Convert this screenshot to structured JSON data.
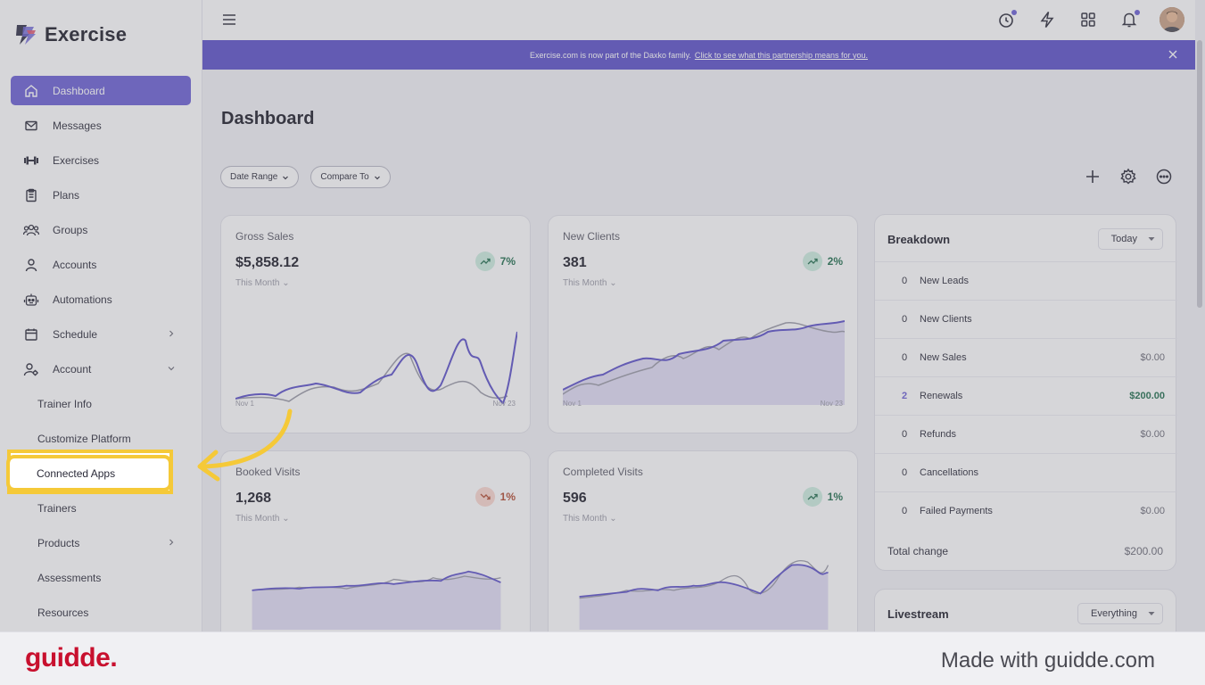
{
  "app": {
    "name": "Exercise"
  },
  "sidebar": {
    "items": [
      {
        "label": "Dashboard"
      },
      {
        "label": "Messages"
      },
      {
        "label": "Exercises"
      },
      {
        "label": "Plans"
      },
      {
        "label": "Groups"
      },
      {
        "label": "Accounts"
      },
      {
        "label": "Automations"
      },
      {
        "label": "Schedule"
      },
      {
        "label": "Account"
      }
    ],
    "subitems": [
      {
        "label": "Trainer Info"
      },
      {
        "label": "Customize Platform"
      },
      {
        "label": "Connected Apps"
      },
      {
        "label": "Trainers"
      },
      {
        "label": "Products"
      },
      {
        "label": "Assessments"
      },
      {
        "label": "Resources"
      }
    ]
  },
  "banner": {
    "text": "Exercise.com is now part of the Daxko family.",
    "link": "Click to see what this partnership means for you."
  },
  "main": {
    "title": "Dashboard",
    "filters": [
      "Date Range",
      "Compare To"
    ]
  },
  "cards": [
    {
      "title": "Gross Sales",
      "value": "$5,858.12",
      "period": "This Month",
      "trend": "7%",
      "x_start": "Nov 1",
      "x_end": "Nov 23"
    },
    {
      "title": "New Clients",
      "value": "381",
      "period": "This Month",
      "trend": "2%",
      "x_start": "Nov 1",
      "x_end": "Nov 23"
    },
    {
      "title": "Booked Visits",
      "value": "1,268",
      "period": "This Month",
      "trend": "1%"
    },
    {
      "title": "Completed Visits",
      "value": "596",
      "period": "This Month",
      "trend": "1%"
    }
  ],
  "breakdown": {
    "title": "Breakdown",
    "select": "Today",
    "rows": [
      {
        "count": "0",
        "label": "New Leads",
        "amount": ""
      },
      {
        "count": "0",
        "label": "New Clients",
        "amount": ""
      },
      {
        "count": "0",
        "label": "New Sales",
        "amount": "$0.00"
      },
      {
        "count": "2",
        "label": "Renewals",
        "amount": "$200.00"
      },
      {
        "count": "0",
        "label": "Refunds",
        "amount": "$0.00"
      },
      {
        "count": "0",
        "label": "Cancellations",
        "amount": ""
      },
      {
        "count": "0",
        "label": "Failed Payments",
        "amount": "$0.00"
      }
    ],
    "total_label": "Total change",
    "total_value": "$200.00"
  },
  "livestream": {
    "title": "Livestream",
    "select": "Everything"
  },
  "footer": {
    "logo": "guidde.",
    "made_with": "Made with guidde.com"
  },
  "colors": {
    "accent": "#6a5fd4",
    "banner": "#5b50c9",
    "highlight": "#f5c938",
    "brand_red": "#c8102e"
  }
}
